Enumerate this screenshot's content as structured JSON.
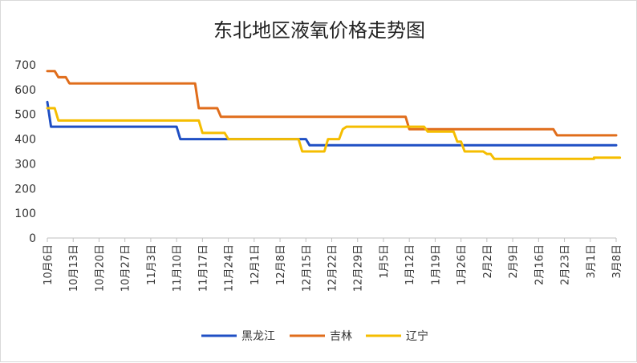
{
  "chart_data": {
    "type": "line",
    "title": "东北地区液氧价格走势图",
    "xlabel": "",
    "ylabel": "",
    "ylim": [
      0,
      700
    ],
    "yticks": [
      0,
      100,
      200,
      300,
      400,
      500,
      600,
      700
    ],
    "grid": false,
    "legend_position": "bottom",
    "x_tick_labels": [
      "10月6日",
      "10月13日",
      "10月20日",
      "10月27日",
      "11月3日",
      "11月10日",
      "11月17日",
      "11月24日",
      "12月1日",
      "12月8日",
      "12月15日",
      "12月22日",
      "12月29日",
      "1月5日",
      "1月12日",
      "1月19日",
      "1月26日",
      "2月2日",
      "2月9日",
      "2月16日",
      "2月23日",
      "3月1日",
      "3月8日"
    ],
    "series": [
      {
        "name": "黑龙江",
        "color": "#1f4fc4",
        "points": [
          [
            0,
            550
          ],
          [
            1,
            450
          ],
          [
            35,
            450
          ],
          [
            36,
            400
          ],
          [
            70,
            400
          ],
          [
            71,
            375
          ],
          [
            105,
            375
          ],
          [
            154,
            375
          ]
        ]
      },
      {
        "name": "吉林",
        "color": "#e06d1b",
        "points": [
          [
            0,
            675
          ],
          [
            2,
            675
          ],
          [
            3,
            650
          ],
          [
            5,
            650
          ],
          [
            6,
            625
          ],
          [
            40,
            625
          ],
          [
            41,
            525
          ],
          [
            46,
            525
          ],
          [
            47,
            490
          ],
          [
            97,
            490
          ],
          [
            98,
            440
          ],
          [
            137,
            440
          ],
          [
            138,
            415
          ],
          [
            154,
            415
          ]
        ]
      },
      {
        "name": "辽宁",
        "color": "#f5bd00",
        "points": [
          [
            0,
            525
          ],
          [
            2,
            525
          ],
          [
            3,
            475
          ],
          [
            41,
            475
          ],
          [
            42,
            425
          ],
          [
            48,
            425
          ],
          [
            49,
            400
          ],
          [
            66,
            400
          ],
          [
            68,
            400
          ],
          [
            69,
            350
          ],
          [
            75,
            350
          ],
          [
            76,
            400
          ],
          [
            79,
            400
          ],
          [
            80,
            440
          ],
          [
            81,
            450
          ],
          [
            97,
            450
          ],
          [
            98,
            450
          ],
          [
            102,
            450
          ],
          [
            103,
            430
          ],
          [
            110,
            430
          ],
          [
            111,
            390
          ],
          [
            112,
            390
          ],
          [
            113,
            350
          ],
          [
            118,
            350
          ],
          [
            119,
            340
          ],
          [
            120,
            340
          ],
          [
            121,
            320
          ],
          [
            148,
            320
          ],
          [
            148,
            325
          ],
          [
            154,
            325
          ],
          [
            155,
            325
          ]
        ]
      }
    ]
  }
}
